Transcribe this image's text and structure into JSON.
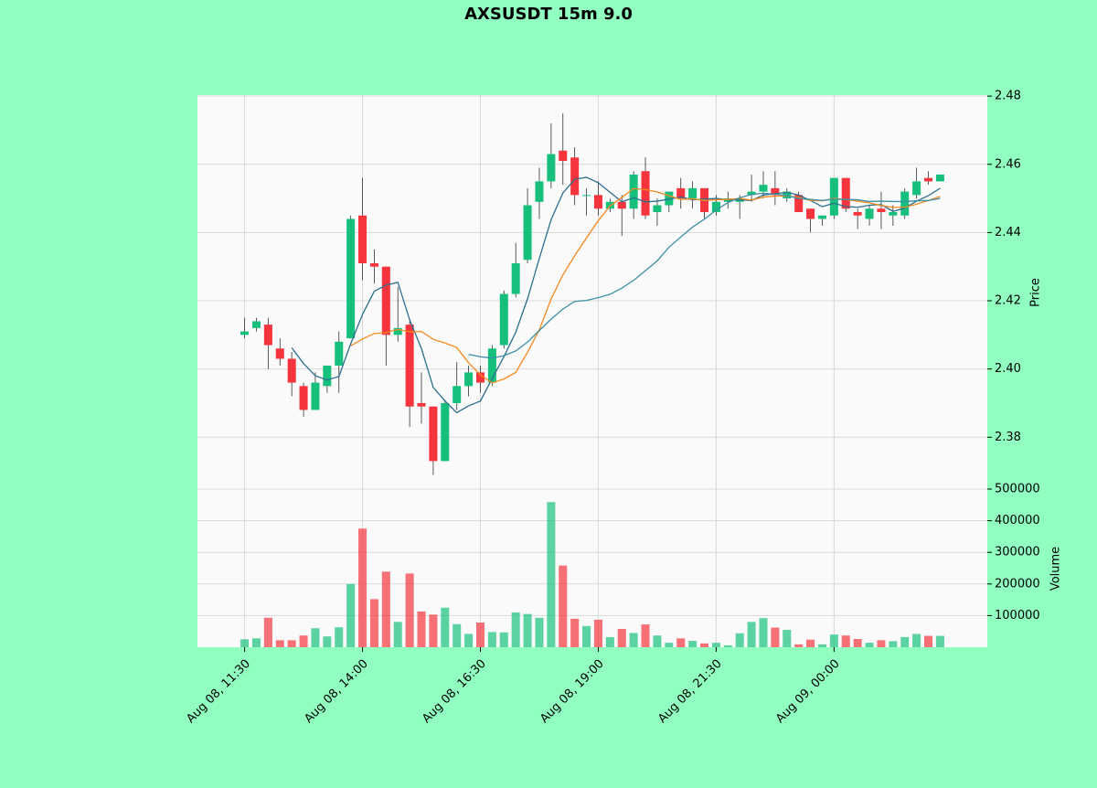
{
  "chart_data": {
    "type": "candlestick",
    "title": "AXSUSDT 15m 9.0",
    "categories": [
      "Aug 08, 11:30",
      null,
      null,
      null,
      null,
      null,
      null,
      null,
      null,
      null,
      "Aug 08, 14:00",
      null,
      null,
      null,
      null,
      null,
      null,
      null,
      null,
      null,
      "Aug 08, 16:30",
      null,
      null,
      null,
      null,
      null,
      null,
      null,
      null,
      null,
      "Aug 08, 19:00",
      null,
      null,
      null,
      null,
      null,
      null,
      null,
      null,
      null,
      "Aug 08, 21:30",
      null,
      null,
      null,
      null,
      null,
      null,
      null,
      null,
      null,
      "Aug 09, 00:00",
      null,
      null,
      null,
      null,
      null,
      null,
      null,
      null,
      null
    ],
    "open": [
      2.41,
      2.412,
      2.413,
      2.406,
      2.403,
      2.395,
      2.388,
      2.395,
      2.401,
      2.409,
      2.445,
      2.431,
      2.43,
      2.41,
      2.413,
      2.39,
      2.389,
      2.373,
      2.39,
      2.395,
      2.399,
      2.396,
      2.407,
      2.422,
      2.432,
      2.449,
      2.455,
      2.464,
      2.462,
      2.451,
      2.451,
      2.447,
      2.449,
      2.447,
      2.458,
      2.446,
      2.448,
      2.453,
      2.45,
      2.453,
      2.446,
      2.449,
      2.449,
      2.451,
      2.452,
      2.453,
      2.45,
      2.451,
      2.447,
      2.444,
      2.445,
      2.456,
      2.446,
      2.444,
      2.447,
      2.445,
      2.445,
      2.451,
      2.456,
      2.455
    ],
    "high": [
      2.415,
      2.415,
      2.415,
      2.409,
      2.405,
      2.396,
      2.399,
      2.401,
      2.411,
      2.445,
      2.456,
      2.435,
      2.43,
      2.424,
      2.414,
      2.399,
      2.389,
      2.391,
      2.402,
      2.401,
      2.401,
      2.407,
      2.423,
      2.437,
      2.453,
      2.459,
      2.472,
      2.475,
      2.465,
      2.453,
      2.455,
      2.45,
      2.451,
      2.458,
      2.462,
      2.45,
      2.452,
      2.456,
      2.455,
      2.453,
      2.451,
      2.452,
      2.451,
      2.457,
      2.458,
      2.458,
      2.453,
      2.452,
      2.447,
      2.445,
      2.456,
      2.456,
      2.447,
      2.448,
      2.452,
      2.448,
      2.453,
      2.459,
      2.458,
      2.457
    ],
    "low": [
      2.409,
      2.411,
      2.4,
      2.401,
      2.392,
      2.386,
      2.388,
      2.393,
      2.393,
      2.409,
      2.426,
      2.425,
      2.401,
      2.408,
      2.383,
      2.384,
      2.369,
      2.373,
      2.388,
      2.392,
      2.393,
      2.395,
      2.406,
      2.421,
      2.431,
      2.444,
      2.453,
      2.454,
      2.448,
      2.445,
      2.445,
      2.446,
      2.439,
      2.444,
      2.444,
      2.442,
      2.446,
      2.447,
      2.447,
      2.444,
      2.445,
      2.447,
      2.444,
      2.449,
      2.45,
      2.448,
      2.449,
      2.446,
      2.44,
      2.442,
      2.444,
      2.446,
      2.441,
      2.442,
      2.441,
      2.442,
      2.444,
      2.45,
      2.454,
      2.455
    ],
    "close": [
      2.411,
      2.414,
      2.407,
      2.403,
      2.396,
      2.388,
      2.396,
      2.401,
      2.408,
      2.444,
      2.431,
      2.43,
      2.41,
      2.412,
      2.389,
      2.389,
      2.373,
      2.39,
      2.395,
      2.399,
      2.396,
      2.406,
      2.422,
      2.431,
      2.448,
      2.455,
      2.463,
      2.461,
      2.451,
      2.451,
      2.447,
      2.449,
      2.447,
      2.457,
      2.445,
      2.448,
      2.452,
      2.45,
      2.453,
      2.446,
      2.449,
      2.45,
      2.45,
      2.452,
      2.454,
      2.451,
      2.452,
      2.446,
      2.444,
      2.445,
      2.456,
      2.447,
      2.445,
      2.447,
      2.446,
      2.446,
      2.452,
      2.455,
      2.455,
      2.457
    ],
    "volume": [
      25000,
      28000,
      93000,
      22000,
      22000,
      37000,
      60000,
      34000,
      63000,
      200000,
      375000,
      152000,
      239000,
      80000,
      233000,
      113000,
      103000,
      125000,
      73000,
      42000,
      78000,
      48000,
      47000,
      110000,
      105000,
      93000,
      459000,
      258000,
      90000,
      67000,
      87000,
      32000,
      58000,
      45000,
      72000,
      37000,
      14000,
      28000,
      20000,
      12000,
      14000,
      6000,
      44000,
      80000,
      92000,
      62000,
      55000,
      9000,
      24000,
      9000,
      40000,
      37000,
      26000,
      14000,
      22000,
      19000,
      32000,
      42000,
      36000,
      36000
    ],
    "up_color": "#16c07c",
    "down_color": "#f5343d",
    "moving_averages": [
      {
        "color": "#2b6f8e",
        "values": [
          null,
          null,
          null,
          null,
          2.4062,
          2.4016,
          2.398,
          2.3968,
          2.3978,
          2.4074,
          2.416,
          2.4228,
          2.4246,
          2.4254,
          2.4144,
          2.406,
          2.3946,
          2.3906,
          2.3872,
          2.3892,
          2.3906,
          2.3972,
          2.4036,
          2.4108,
          2.4206,
          2.4324,
          2.4438,
          2.4516,
          2.4556,
          2.4562,
          2.4546,
          2.4518,
          2.449,
          2.4502,
          2.449,
          2.4492,
          2.4498,
          2.4504,
          2.4496,
          2.4498,
          2.45,
          2.4496,
          2.4496,
          2.4494,
          2.451,
          2.4514,
          2.4518,
          2.451,
          2.4494,
          2.4476,
          2.4486,
          2.4476,
          2.4474,
          2.448,
          2.4482,
          2.4462,
          2.4472,
          2.4492,
          2.4508,
          2.453
        ]
      },
      {
        "color": "#f7891f",
        "values": [
          null,
          null,
          null,
          null,
          null,
          null,
          null,
          null,
          null,
          2.4068,
          2.4088,
          2.4104,
          2.4107,
          2.4116,
          2.4109,
          2.411,
          2.4087,
          2.4076,
          2.4063,
          2.4018,
          2.3983,
          2.3959,
          2.3971,
          2.399,
          2.4049,
          2.4115,
          2.4205,
          2.4276,
          2.4332,
          2.4384,
          2.4435,
          2.4478,
          2.4503,
          2.4529,
          2.4526,
          2.4519,
          2.4508,
          2.4497,
          2.4499,
          2.4494,
          2.4496,
          2.4497,
          2.45,
          2.4495,
          2.4504,
          2.4507,
          2.4507,
          2.4503,
          2.4494,
          2.4493,
          2.45,
          2.4497,
          2.4492,
          2.4487,
          2.4479,
          2.4474,
          2.4474,
          2.4483,
          2.4494,
          2.4506
        ]
      },
      {
        "color": "#3b8fa8",
        "values": [
          null,
          null,
          null,
          null,
          null,
          null,
          null,
          null,
          null,
          null,
          null,
          null,
          null,
          null,
          null,
          null,
          null,
          null,
          null,
          2.4043,
          2.4036,
          2.4032,
          2.4039,
          2.4053,
          2.4079,
          2.4113,
          2.4146,
          2.4176,
          2.4198,
          2.4201,
          2.4209,
          2.4219,
          2.4237,
          2.426,
          2.4288,
          2.4317,
          2.4357,
          2.4387,
          2.4416,
          2.4439,
          2.4466,
          2.4488,
          2.4502,
          2.4512,
          2.4515,
          2.4513,
          2.4508,
          2.45,
          2.4497,
          2.4494,
          2.4498,
          2.4497,
          2.4496,
          2.4491,
          2.4492,
          2.4491,
          2.4491,
          2.4493,
          2.4494,
          2.45
        ]
      }
    ],
    "xlim": [
      -4,
      63
    ],
    "ylabel": "Price",
    "ylim": [
      2.3648,
      2.4803
    ],
    "yticks": [
      2.38,
      {
        "value": 2.4,
        "label": "2.40"
      },
      2.42,
      2.44,
      2.46,
      2.48
    ],
    "volume_label": "Volume",
    "volume_ylim": [
      0,
      500000
    ],
    "volume_yticks": [
      100000,
      200000,
      300000,
      400000,
      500000
    ],
    "grid": true
  }
}
